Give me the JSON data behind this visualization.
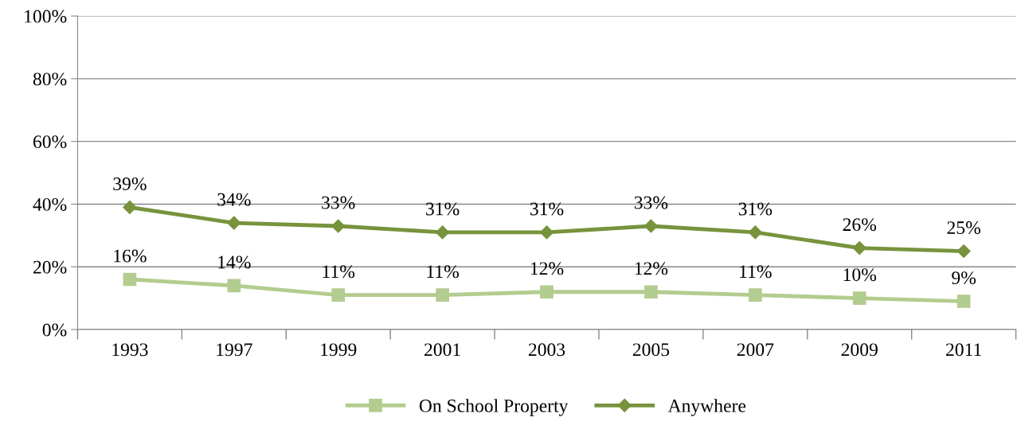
{
  "chart_data": {
    "type": "line",
    "categories": [
      "1993",
      "1997",
      "1999",
      "2001",
      "2003",
      "2005",
      "2007",
      "2009",
      "2011"
    ],
    "series": [
      {
        "name": "On School Property",
        "color": "#b3cc8f",
        "marker": "square",
        "values": [
          16,
          14,
          11,
          11,
          12,
          12,
          11,
          10,
          9
        ],
        "value_labels": [
          "16%",
          "14%",
          "11%",
          "11%",
          "12%",
          "12%",
          "11%",
          "10%",
          "9%"
        ]
      },
      {
        "name": "Anywhere",
        "color": "#77933c",
        "marker": "diamond",
        "values": [
          39,
          34,
          33,
          31,
          31,
          33,
          31,
          26,
          25
        ],
        "value_labels": [
          "39%",
          "34%",
          "33%",
          "31%",
          "31%",
          "33%",
          "31%",
          "26%",
          "25%"
        ]
      }
    ],
    "ylim": [
      0,
      100
    ],
    "yticks": [
      {
        "value": 0,
        "label": "0%"
      },
      {
        "value": 20,
        "label": "20%"
      },
      {
        "value": 40,
        "label": "40%"
      },
      {
        "value": 60,
        "label": "60%"
      },
      {
        "value": 80,
        "label": "80%"
      },
      {
        "value": 100,
        "label": "100%"
      }
    ],
    "grid": "y",
    "legend": "bottom",
    "line_style": "solid"
  }
}
